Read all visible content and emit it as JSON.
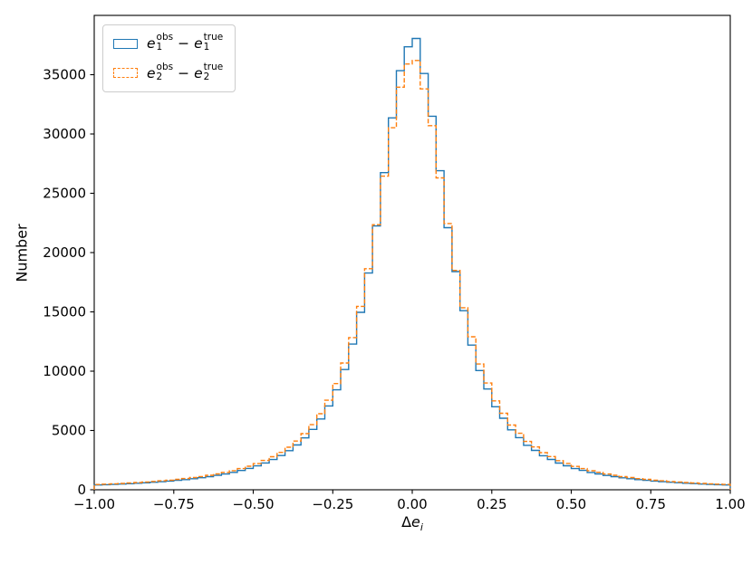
{
  "chart_data": {
    "type": "histogram",
    "title": "",
    "xlabel_prefix": "Δ",
    "xlabel_var": "e",
    "xlabel_sub": "i",
    "ylabel": "Number",
    "xlim": [
      -1,
      1
    ],
    "ylim": [
      0,
      40000
    ],
    "bin_start": -1,
    "bin_width": 0.025,
    "grid": false,
    "legend_position": "upper-left",
    "x_axis": {
      "ticks": [
        {
          "value": -1.0,
          "label": "−1.00"
        },
        {
          "value": -0.75,
          "label": "−0.75"
        },
        {
          "value": -0.5,
          "label": "−0.50"
        },
        {
          "value": -0.25,
          "label": "−0.25"
        },
        {
          "value": 0.0,
          "label": "0.00"
        },
        {
          "value": 0.25,
          "label": "0.25"
        },
        {
          "value": 0.5,
          "label": "0.50"
        },
        {
          "value": 0.75,
          "label": "0.75"
        },
        {
          "value": 1.0,
          "label": "1.00"
        }
      ]
    },
    "y_axis": {
      "ticks": [
        {
          "value": 0,
          "label": "0"
        },
        {
          "value": 5000,
          "label": "5000"
        },
        {
          "value": 10000,
          "label": "10000"
        },
        {
          "value": 15000,
          "label": "15000"
        },
        {
          "value": 20000,
          "label": "20000"
        },
        {
          "value": 25000,
          "label": "25000"
        },
        {
          "value": 30000,
          "label": "30000"
        },
        {
          "value": 35000,
          "label": "35000"
        }
      ]
    },
    "series": [
      {
        "id": "e1",
        "name": "e1_obs_minus_e1_true",
        "color": "#1f77b4",
        "line_style": "solid",
        "values": [
          401,
          426,
          453,
          483,
          515,
          551,
          590,
          633,
          680,
          733,
          792,
          857,
          930,
          1013,
          1105,
          1210,
          1330,
          1466,
          1623,
          1804,
          2014,
          2259,
          2548,
          2888,
          3294,
          3782,
          4371,
          5090,
          5973,
          7066,
          8431,
          10140,
          12285,
          14965,
          18278,
          22244,
          26739,
          31358,
          35334,
          37350,
          38050,
          35100,
          31500,
          26900,
          22100,
          18400,
          15100,
          12200,
          10050,
          8500,
          7000,
          6030,
          5050,
          4400,
          3750,
          3320,
          2870,
          2560,
          2250,
          2020,
          1790,
          1630,
          1460,
          1335,
          1205,
          1110,
          1008,
          935,
          855,
          795,
          730,
          682,
          631,
          592,
          550,
          516,
          482,
          454,
          425,
          402
        ]
      },
      {
        "id": "e2",
        "name": "e2_obs_minus_e2_true",
        "color": "#ff7f0e",
        "line_style": "dashed",
        "values": [
          445,
          472,
          502,
          535,
          571,
          610,
          653,
          700,
          752,
          810,
          875,
          947,
          1027,
          1117,
          1219,
          1334,
          1465,
          1614,
          1784,
          1981,
          2209,
          2474,
          2785,
          3152,
          3587,
          4107,
          4733,
          5490,
          6416,
          7552,
          8953,
          10686,
          12832,
          15464,
          18642,
          22352,
          26445,
          30528,
          33950,
          35900,
          36200,
          33800,
          30700,
          26300,
          22450,
          18500,
          15350,
          12900,
          10600,
          9000,
          7500,
          6450,
          5460,
          4760,
          4080,
          3610,
          3130,
          2800,
          2460,
          2220,
          1970,
          1790,
          1605,
          1470,
          1328,
          1225,
          1110,
          1030,
          940,
          880,
          805,
          755,
          697,
          655,
          607,
          573,
          532,
          504,
          470,
          447
        ]
      }
    ]
  },
  "legend": {
    "items": [
      {
        "color": "#1f77b4",
        "line_style": "solid",
        "var1": "e",
        "sup1": "obs",
        "sub1": "1",
        "operator": "−",
        "var2": "e",
        "sup2": "true",
        "sub2": "1"
      },
      {
        "color": "#ff7f0e",
        "line_style": "dashed",
        "var1": "e",
        "sup1": "obs",
        "sub1": "2",
        "operator": "−",
        "var2": "e",
        "sup2": "true",
        "sub2": "2"
      }
    ]
  }
}
